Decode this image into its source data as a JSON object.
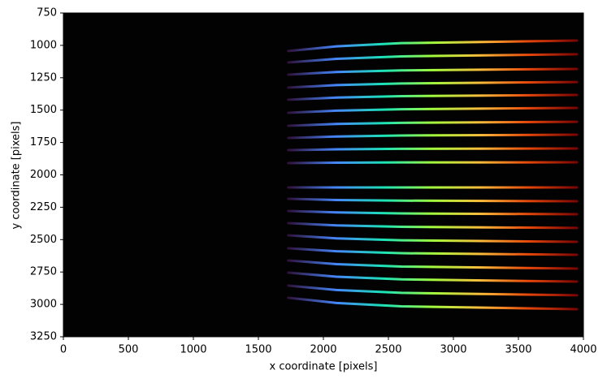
{
  "chart_data": {
    "type": "line",
    "xlabel": "x coordinate [pixels]",
    "ylabel": "y coordinate [pixels]",
    "xlim": [
      0,
      4000
    ],
    "xticks": [
      0,
      500,
      1000,
      1500,
      2000,
      2500,
      3000,
      3500,
      4000
    ],
    "ylim": [
      3250,
      750
    ],
    "yticks": [
      750,
      1000,
      1250,
      1500,
      1750,
      2000,
      2250,
      2500,
      2750,
      3000,
      3250
    ],
    "y_inverted": true,
    "grid": false,
    "background": "#020202",
    "colormap": [
      "#30123b",
      "#4686fb",
      "#1ae4b6",
      "#a2fc3c",
      "#fabb3a",
      "#e4460a",
      "#7a0403"
    ],
    "x": [
      1730,
      2100,
      2600,
      3950
    ],
    "series": [
      {
        "values": [
          1044,
          1008,
          983,
          963
        ]
      },
      {
        "values": [
          1132,
          1104,
          1085,
          1069
        ]
      },
      {
        "values": [
          1226,
          1206,
          1193,
          1182
        ]
      },
      {
        "values": [
          1326,
          1307,
          1294,
          1283
        ]
      },
      {
        "values": [
          1420,
          1403,
          1392,
          1383
        ]
      },
      {
        "values": [
          1521,
          1504,
          1493,
          1483
        ]
      },
      {
        "values": [
          1621,
          1607,
          1598,
          1590
        ]
      },
      {
        "values": [
          1715,
          1704,
          1696,
          1690
        ]
      },
      {
        "values": [
          1809,
          1803,
          1799,
          1796
        ]
      },
      {
        "values": [
          1909,
          1906,
          1904,
          1903
        ]
      },
      {
        "values": [
          2097,
          2097,
          2097,
          2097
        ]
      },
      {
        "values": [
          2185,
          2194,
          2199,
          2204
        ]
      },
      {
        "values": [
          2279,
          2290,
          2298,
          2304
        ]
      },
      {
        "values": [
          2373,
          2390,
          2401,
          2410
        ]
      },
      {
        "values": [
          2467,
          2490,
          2505,
          2517
        ]
      },
      {
        "values": [
          2567,
          2590,
          2605,
          2617
        ]
      },
      {
        "values": [
          2661,
          2689,
          2708,
          2724
        ]
      },
      {
        "values": [
          2755,
          2786,
          2807,
          2824
        ]
      },
      {
        "values": [
          2855,
          2889,
          2911,
          2930
        ]
      },
      {
        "values": [
          2949,
          2989,
          3015,
          3037
        ]
      }
    ]
  }
}
